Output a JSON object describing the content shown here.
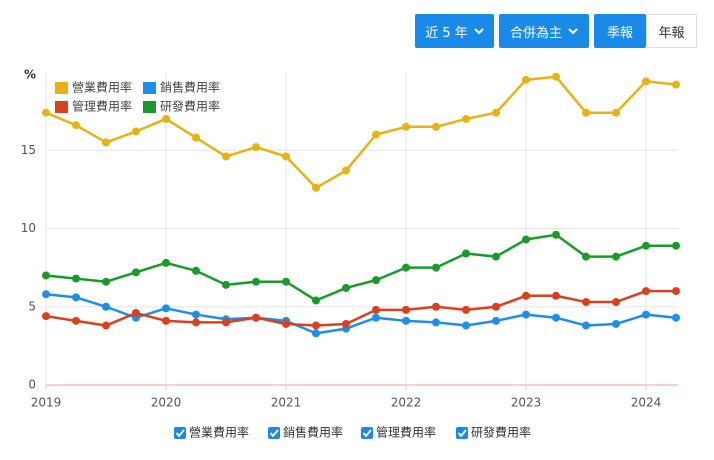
{
  "controls": {
    "period": "近 5 年",
    "consolidation": "合併為主",
    "tabs": [
      "季報",
      "年報"
    ]
  },
  "chart_data": {
    "type": "line",
    "y_label": "%",
    "x": [
      2019,
      2019.25,
      2019.5,
      2019.75,
      2020,
      2020.25,
      2020.5,
      2020.75,
      2021,
      2021.25,
      2021.5,
      2021.75,
      2022,
      2022.25,
      2022.5,
      2022.75,
      2023,
      2023.25,
      2023.5,
      2023.75,
      2024,
      2024.25
    ],
    "series": [
      {
        "name": "營業費用率",
        "color": "#e6b312",
        "values": [
          17.4,
          16.6,
          15.5,
          16.2,
          17.0,
          15.8,
          14.6,
          15.2,
          14.6,
          12.6,
          13.7,
          16.0,
          16.5,
          16.5,
          17.0,
          17.4,
          19.5,
          19.7,
          17.4,
          17.4,
          19.4,
          19.2
        ]
      },
      {
        "name": "銷售費用率",
        "color": "#1e8ee6",
        "values": [
          5.8,
          5.6,
          5.0,
          4.3,
          4.9,
          4.5,
          4.2,
          4.3,
          4.1,
          3.3,
          3.6,
          4.3,
          4.1,
          4.0,
          3.8,
          4.1,
          4.5,
          4.3,
          3.8,
          3.9,
          4.5,
          4.3
        ]
      },
      {
        "name": "管理費用率",
        "color": "#d9411e",
        "values": [
          4.4,
          4.1,
          3.8,
          4.6,
          4.1,
          4.0,
          4.0,
          4.3,
          3.9,
          3.8,
          3.9,
          4.8,
          4.8,
          5.0,
          4.8,
          5.0,
          5.7,
          5.7,
          5.3,
          5.3,
          6.0,
          6.0
        ]
      },
      {
        "name": "研發費用率",
        "color": "#1a9a2a",
        "values": [
          7.0,
          6.8,
          6.6,
          7.2,
          7.8,
          7.3,
          6.4,
          6.6,
          6.6,
          5.4,
          6.2,
          6.7,
          7.5,
          7.5,
          8.4,
          8.2,
          9.3,
          9.6,
          8.2,
          8.2,
          8.9,
          8.9
        ]
      }
    ],
    "xlim": [
      2019,
      2024.25
    ],
    "xticks": [
      2019,
      2020,
      2021,
      2022,
      2023,
      2024
    ],
    "ylim": [
      0,
      20
    ],
    "yticks": [
      0,
      5,
      10,
      15
    ],
    "grid": true
  }
}
